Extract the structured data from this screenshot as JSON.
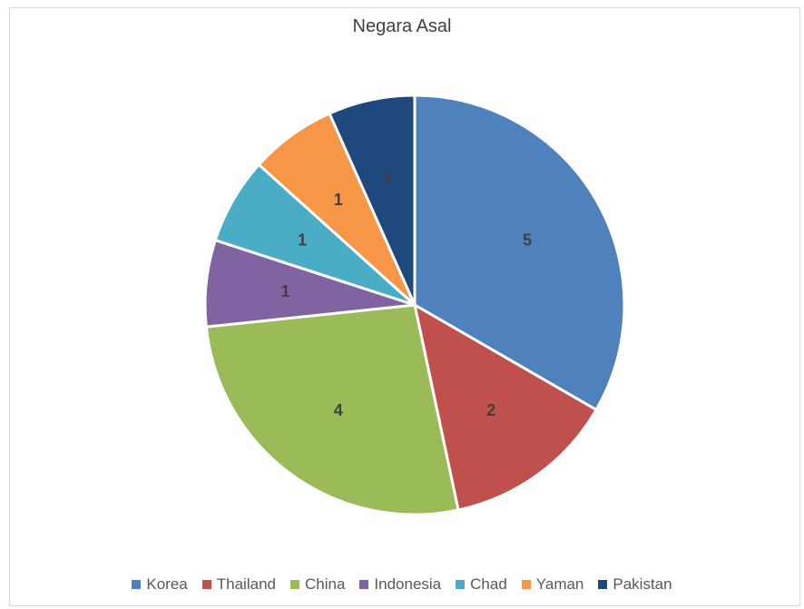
{
  "chart_data": {
    "type": "pie",
    "title": "Negara Asal",
    "categories": [
      "Korea",
      "Thailand",
      "China",
      "Indonesia",
      "Chad",
      "Yaman",
      "Pakistan"
    ],
    "values": [
      5,
      2,
      4,
      1,
      1,
      1,
      1
    ],
    "data_labels": [
      "5",
      "2",
      "4",
      "1",
      "1",
      "1",
      "1"
    ],
    "colors": [
      "#4f81bd",
      "#c0504d",
      "#9bbb59",
      "#8064a2",
      "#4bacc6",
      "#f79646",
      "#1f497d"
    ],
    "legend_position": "bottom",
    "start_angle": "12 o'clock",
    "direction": "clockwise"
  }
}
